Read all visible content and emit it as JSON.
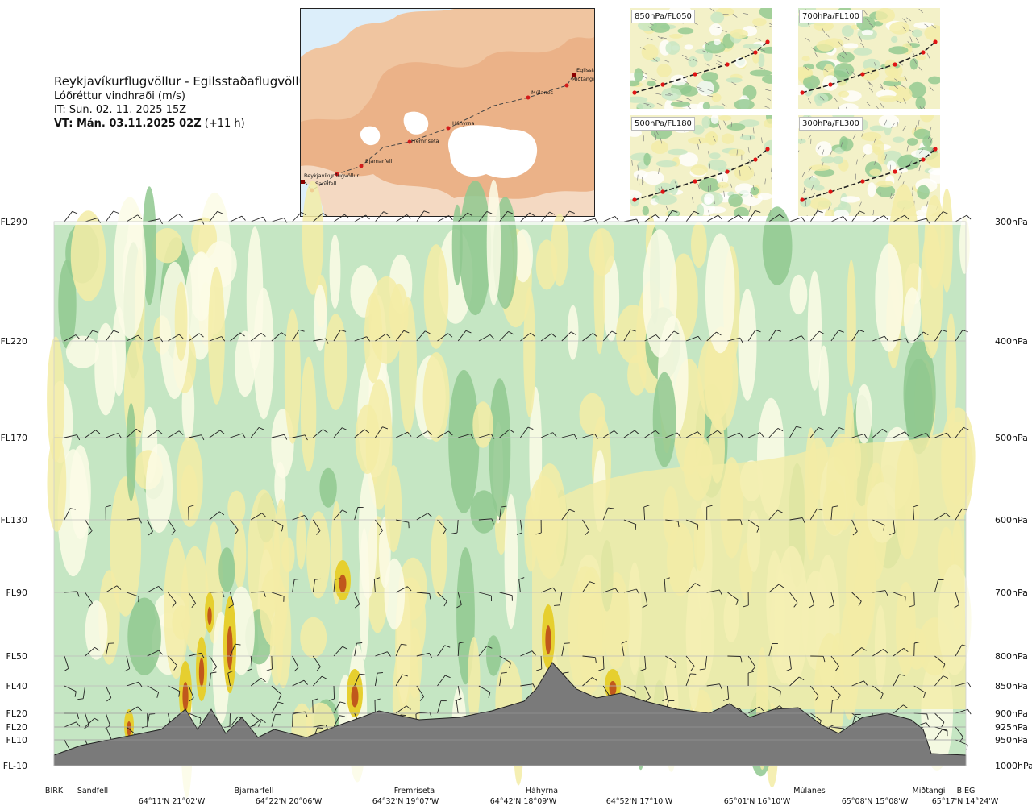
{
  "header": {
    "title": "Reykjavíkurflugvöllur - Egilsstaðaflugvöllur",
    "subtitle": "Lóðréttur vindhraði (m/s)",
    "issue_time": "IT: Sun. 02. 11. 2025 15Z",
    "valid_time_bold": "VT: Mán. 03.11.2025 02Z",
    "valid_time_offset": "(+11 h)"
  },
  "route_map": {
    "points": [
      {
        "name": "Reykjavíkurflugvöllur"
      },
      {
        "name": "Sandfell"
      },
      {
        "name": "Bjarnarfell"
      },
      {
        "name": "Fremriseta"
      },
      {
        "name": "Háhyrna"
      },
      {
        "name": "Múlanes"
      },
      {
        "name": "Egilssta"
      },
      {
        "name": "Miðtangi"
      }
    ]
  },
  "level_maps": [
    {
      "label": "850hPa/FL050"
    },
    {
      "label": "700hPa/FL100"
    },
    {
      "label": "500hPa/FL180"
    },
    {
      "label": "300hPa/FL300"
    }
  ],
  "chart_data": {
    "type": "heatmap",
    "variable": "Lóðréttur vindhraði (m/s)",
    "left_axis_ticks": [
      "FL290",
      "FL220",
      "FL170",
      "FL130",
      "FL90",
      "FL50",
      "FL40",
      "FL20",
      "FL20",
      "FL10",
      "FL-10"
    ],
    "right_axis_ticks": [
      "300hPa",
      "400hPa",
      "500hPa",
      "600hPa",
      "700hPa",
      "800hPa",
      "850hPa",
      "900hPa",
      "925hPa",
      "950hPa",
      "1000hPa"
    ],
    "pressure_levels": [
      300,
      400,
      500,
      600,
      700,
      800,
      850,
      900,
      925,
      950,
      1000
    ],
    "wind_barb_levels": [
      300,
      400,
      500,
      600,
      700,
      800,
      850,
      900,
      925,
      950
    ],
    "locations": [
      "BIRK",
      "Sandfell",
      "Bjarnarfell",
      "Fremriseta",
      "Háhyrna",
      "Múlanes",
      "Miðtangi",
      "BIEG"
    ],
    "coordinates": [
      "64°11'N 21°02'W",
      "64°22'N 20°06'W",
      "64°32'N 19°07'W",
      "64°42'N 18°09'W",
      "64°52'N 17°10'W",
      "65°01'N 16°10'W",
      "65°08'N 15°08'W",
      "65°17'N 14°24'W"
    ],
    "terrain_color": "#7a7a7a",
    "palette": {
      "strong_down": "#8fc88f",
      "down": "#c5e6c3",
      "neutral": "#fbfbe6",
      "up": "#f3eca6",
      "strong_up": "#e6cf2f",
      "very_strong_up": "#c0581c"
    }
  }
}
